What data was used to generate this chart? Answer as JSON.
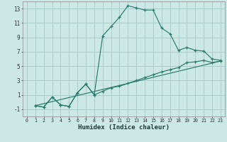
{
  "xlabel": "Humidex (Indice chaleur)",
  "background_color": "#cce8e4",
  "grid_color": "#aaccca",
  "line_color": "#2a7a6e",
  "xlim": [
    -0.5,
    23.5
  ],
  "ylim": [
    -2.0,
    14.0
  ],
  "xticks": [
    0,
    1,
    2,
    3,
    4,
    5,
    6,
    7,
    8,
    9,
    10,
    11,
    12,
    13,
    14,
    15,
    16,
    17,
    18,
    19,
    20,
    21,
    22,
    23
  ],
  "yticks": [
    -1,
    1,
    3,
    5,
    7,
    9,
    11,
    13
  ],
  "curve1_x": [
    1,
    2,
    3,
    4,
    5,
    6,
    7,
    8,
    9,
    10,
    11,
    12,
    13,
    14,
    15,
    16,
    17,
    18,
    19,
    20,
    21,
    22,
    23
  ],
  "curve1_y": [
    -0.5,
    -0.7,
    0.7,
    -0.4,
    -0.6,
    1.3,
    2.5,
    1.0,
    9.2,
    10.5,
    11.8,
    13.4,
    13.1,
    12.8,
    12.8,
    10.3,
    9.5,
    7.2,
    7.6,
    7.2,
    7.1,
    6.0,
    5.8
  ],
  "curve2_x": [
    1,
    2,
    3,
    4,
    5,
    6,
    7,
    8,
    9,
    10,
    11,
    12,
    13,
    14,
    15,
    16,
    17,
    18,
    19,
    20,
    21,
    22,
    23
  ],
  "curve2_y": [
    -0.5,
    -0.7,
    0.7,
    -0.4,
    -0.6,
    1.3,
    2.5,
    1.0,
    1.5,
    2.0,
    2.2,
    2.6,
    3.0,
    3.4,
    3.8,
    4.2,
    4.5,
    4.8,
    5.5,
    5.6,
    5.8,
    5.5,
    5.7
  ],
  "line_x": [
    1,
    23
  ],
  "line_y": [
    -0.5,
    5.7
  ]
}
